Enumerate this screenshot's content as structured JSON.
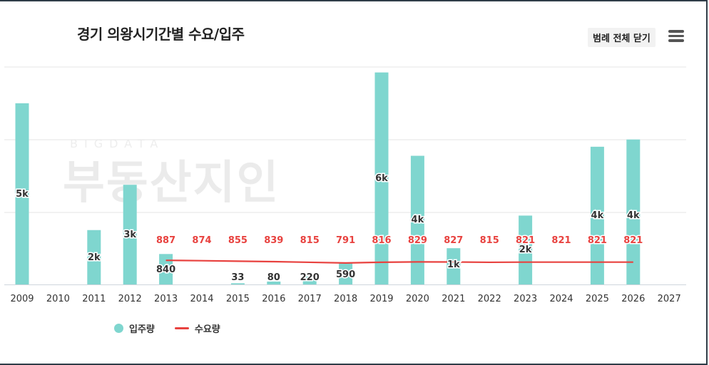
{
  "header": {
    "title": "경기 의왕시기간별 수요/입주",
    "legend_toggle_label": "범례 전체 닫기",
    "menu_icon": "hamburger-menu-icon"
  },
  "watermark": {
    "small": "BIGDATA",
    "big": "부동산지인"
  },
  "colors": {
    "supply_bar": "#7fd6cf",
    "demand_line": "#e8423f",
    "grid": "#e6e6e6",
    "axis_text": "#333333"
  },
  "chart_data": {
    "type": "bar",
    "categories": [
      "2009",
      "2010",
      "2011",
      "2012",
      "2013",
      "2014",
      "2015",
      "2016",
      "2017",
      "2018",
      "2019",
      "2020",
      "2021",
      "2022",
      "2023",
      "2024",
      "2025",
      "2026",
      "2027"
    ],
    "ylim": [
      0,
      6000
    ],
    "grid": true,
    "legend_position": "bottom-left",
    "series": [
      {
        "name": "입주량",
        "type": "bar",
        "values": [
          5000,
          0,
          1500,
          2750,
          840,
          0,
          33,
          80,
          220,
          590,
          5850,
          3550,
          1000,
          0,
          1900,
          0,
          3800,
          4000,
          0
        ],
        "labels": [
          "5k",
          "",
          "2k",
          "3k",
          "840",
          "",
          "33",
          "80",
          "220",
          "590",
          "6k",
          "4k",
          "1k",
          "",
          "2k",
          "",
          "4k",
          "4k",
          ""
        ]
      },
      {
        "name": "수요량",
        "type": "line",
        "values": [
          null,
          null,
          null,
          null,
          887,
          874,
          855,
          839,
          815,
          791,
          816,
          829,
          827,
          815,
          821,
          821,
          821,
          821,
          null
        ],
        "labels": [
          "",
          "",
          "",
          "",
          "887",
          "874",
          "855",
          "839",
          "815",
          "791",
          "816",
          "829",
          "827",
          "815",
          "821",
          "821",
          "821",
          "821",
          ""
        ]
      }
    ]
  },
  "legend": [
    {
      "label": "입주량",
      "color": "#7fd6cf",
      "marker": "dot"
    },
    {
      "label": "수요량",
      "color": "#e8423f",
      "marker": "line"
    }
  ]
}
